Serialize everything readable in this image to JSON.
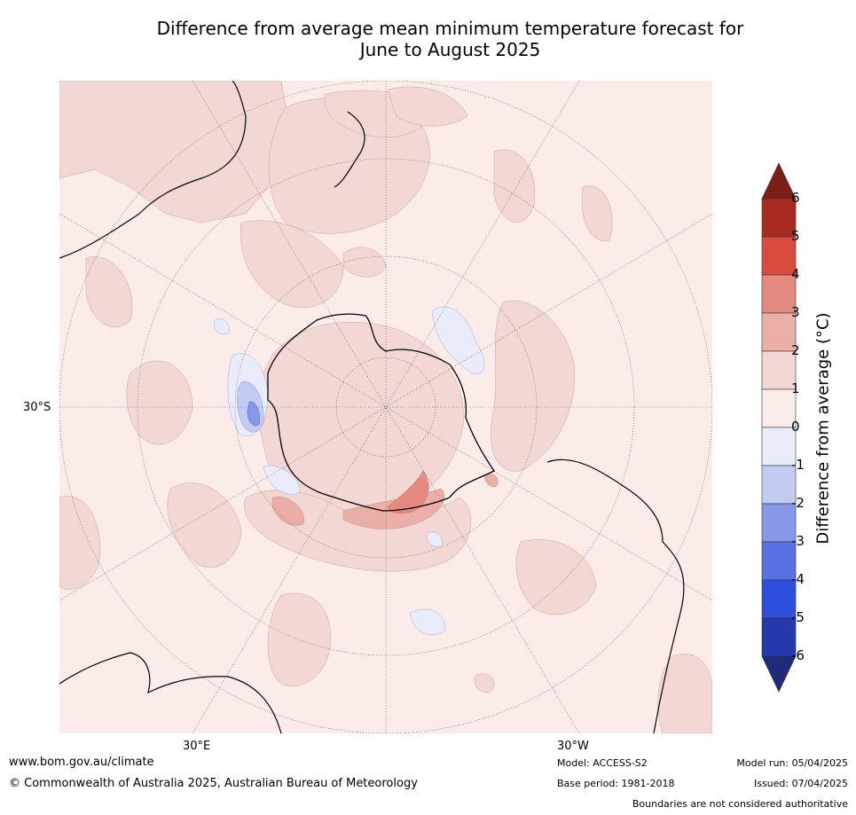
{
  "title_line1": "Difference from average mean minimum temperature forecast for",
  "title_line2": "June to August 2025",
  "map": {
    "labels": {
      "lat_30s": "30°S",
      "lon_30e": "30°E",
      "lon_30w": "30°W"
    },
    "colors": {
      "ocean_base": "#fbecea",
      "anomaly_1_2": "#f3d7d4",
      "anomaly_2_3": "#ecafa8",
      "anomaly_3_4": "#e58a80",
      "neg_0_1": "#e9ecfa",
      "neg_1_2": "#c3cbf2",
      "neg_2_3": "#8798e8",
      "coast": "#000000",
      "grid": "#555555"
    }
  },
  "colorbar": {
    "title": "Difference from average (°C)",
    "ticks": [
      "6",
      "5",
      "4",
      "3",
      "2",
      "1",
      "0",
      "-1",
      "-2",
      "-3",
      "-4",
      "-5",
      "-6"
    ],
    "colors": [
      "#a82a23",
      "#d94b3f",
      "#e58a80",
      "#ecafa8",
      "#f3d7d4",
      "#fbecea",
      "#e9ecfa",
      "#c3cbf2",
      "#8798e8",
      "#5a71e3",
      "#2f4fe0",
      "#2538ad"
    ],
    "over_color": "#7a1f18",
    "under_color": "#1f2a7d"
  },
  "footer": {
    "url": "www.bom.gov.au/climate",
    "copyright": "© Commonwealth of Australia 2025, Australian Bureau of Meteorology",
    "model": "Model: ACCESS-S2",
    "base_period": "Base period: 1981-2018",
    "model_run": "Model run: 05/04/2025",
    "issued": "Issued: 07/04/2025",
    "boundaries": "Boundaries are not considered authoritative"
  }
}
